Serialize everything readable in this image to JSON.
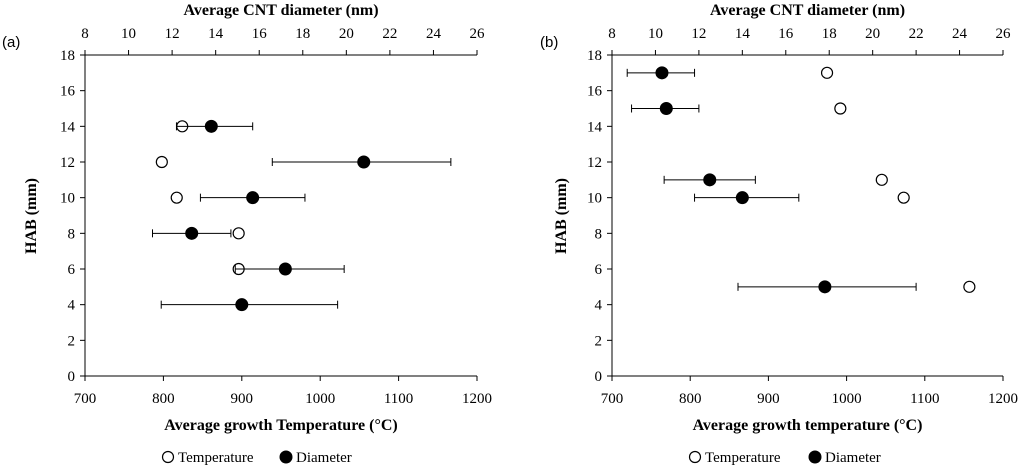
{
  "chart_data": [
    {
      "type": "scatter",
      "panel_label": "(a)",
      "xlabel": "Average growth Temperature (°C)",
      "x2label": "Average CNT diameter (nm)",
      "ylabel": "HAB (mm)",
      "xlim": [
        700,
        1200
      ],
      "x2lim": [
        8,
        26
      ],
      "ylim": [
        0,
        18
      ],
      "xticks": [
        "700",
        "800",
        "900",
        "1000",
        "1100",
        "1200"
      ],
      "x2ticks": [
        "8",
        "10",
        "12",
        "14",
        "16",
        "18",
        "20",
        "22",
        "24",
        "26"
      ],
      "yticks": [
        "0",
        "2",
        "4",
        "6",
        "8",
        "10",
        "12",
        "14",
        "16",
        "18"
      ],
      "series": [
        {
          "name": "Temperature",
          "axis": "bottom",
          "marker": "open-circle",
          "points": [
            {
              "x": 824,
              "y": 14
            },
            {
              "x": 798,
              "y": 12
            },
            {
              "x": 817,
              "y": 10
            },
            {
              "x": 896,
              "y": 8
            },
            {
              "x": 896,
              "y": 6
            }
          ]
        },
        {
          "name": "Diameter",
          "axis": "top",
          "marker": "filled-circle",
          "points": [
            {
              "x": 13.8,
              "y": 14,
              "xmin": 12.2,
              "xmax": 15.7
            },
            {
              "x": 20.8,
              "y": 12,
              "xmin": 16.6,
              "xmax": 24.8
            },
            {
              "x": 15.7,
              "y": 10,
              "xmin": 13.3,
              "xmax": 18.1
            },
            {
              "x": 12.9,
              "y": 8,
              "xmin": 11.1,
              "xmax": 14.7
            },
            {
              "x": 17.2,
              "y": 6,
              "xmin": 14.9,
              "xmax": 19.9
            },
            {
              "x": 15.2,
              "y": 4,
              "xmin": 11.5,
              "xmax": 19.6
            }
          ]
        }
      ],
      "legend": [
        "Temperature",
        "Diameter"
      ],
      "legend_position": "bottom"
    },
    {
      "type": "scatter",
      "panel_label": "(b)",
      "xlabel": "Average growth temperature (°C)",
      "x2label": "Average CNT diameter (nm)",
      "ylabel": "HAB (mm)",
      "xlim": [
        700,
        1200
      ],
      "x2lim": [
        8,
        26
      ],
      "ylim": [
        0,
        18
      ],
      "xticks": [
        "700",
        "800",
        "900",
        "1000",
        "1100",
        "1200"
      ],
      "x2ticks": [
        "8",
        "10",
        "12",
        "14",
        "16",
        "18",
        "20",
        "22",
        "24",
        "26"
      ],
      "yticks": [
        "0",
        "2",
        "4",
        "6",
        "8",
        "10",
        "12",
        "14",
        "16",
        "18"
      ],
      "series": [
        {
          "name": "Temperature",
          "axis": "bottom",
          "marker": "open-circle",
          "points": [
            {
              "x": 975,
              "y": 17
            },
            {
              "x": 992,
              "y": 15
            },
            {
              "x": 1045,
              "y": 11
            },
            {
              "x": 1073,
              "y": 10
            },
            {
              "x": 1157,
              "y": 5
            }
          ]
        },
        {
          "name": "Diameter",
          "axis": "top",
          "marker": "filled-circle",
          "points": [
            {
              "x": 10.3,
              "y": 17,
              "xmin": 8.7,
              "xmax": 11.8
            },
            {
              "x": 10.5,
              "y": 15,
              "xmin": 8.9,
              "xmax": 12.0
            },
            {
              "x": 12.5,
              "y": 11,
              "xmin": 10.4,
              "xmax": 14.6
            },
            {
              "x": 14.0,
              "y": 10,
              "xmin": 11.8,
              "xmax": 16.6
            },
            {
              "x": 17.8,
              "y": 5,
              "xmin": 13.8,
              "xmax": 22.0
            }
          ]
        }
      ],
      "legend": [
        "Temperature",
        "Diameter"
      ],
      "legend_position": "bottom"
    }
  ]
}
